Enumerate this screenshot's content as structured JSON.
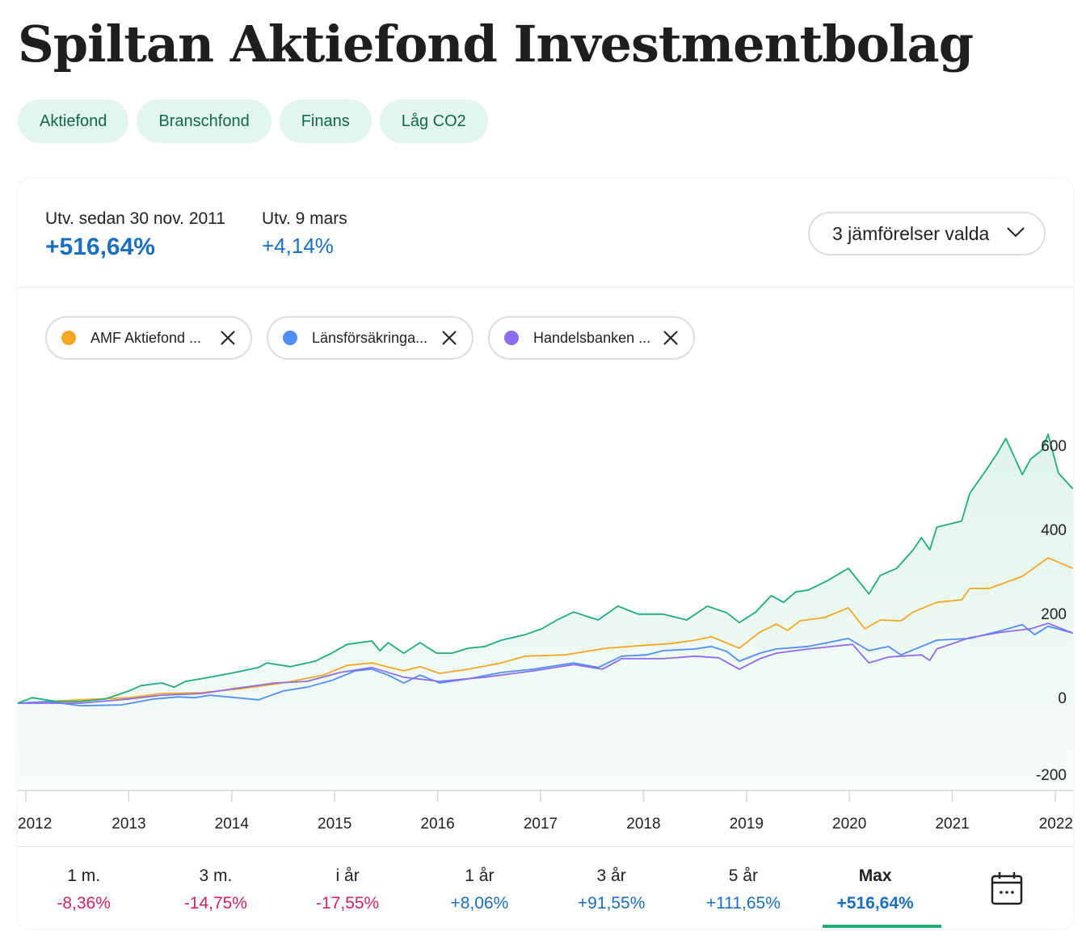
{
  "title": "Spiltan Aktiefond Investmentbolag",
  "tags": [
    "Aktiefond",
    "Branschfond",
    "Finans",
    "Låg CO2"
  ],
  "stats": {
    "since_label": "Utv. sedan 30 nov. 2011",
    "since_value": "+516,64%",
    "day_label": "Utv. 9 mars",
    "day_value": "+4,14%"
  },
  "compare_button": "3 jämförelser valda",
  "comparisons": [
    {
      "name": "AMF Aktiefond ...",
      "color": "#f5a623"
    },
    {
      "name": "Länsförsäkringa...",
      "color": "#4f8ff7"
    },
    {
      "name": "Handelsbanken ...",
      "color": "#8e6cf0"
    }
  ],
  "periods": [
    {
      "label": "1 m.",
      "value": "-8,36%",
      "tone": "neg"
    },
    {
      "label": "3 m.",
      "value": "-14,75%",
      "tone": "neg"
    },
    {
      "label": "i år",
      "value": "-17,55%",
      "tone": "neg"
    },
    {
      "label": "1 år",
      "value": "+8,06%",
      "tone": "pos"
    },
    {
      "label": "3 år",
      "value": "+91,55%",
      "tone": "pos"
    },
    {
      "label": "5 år",
      "value": "+111,65%",
      "tone": "pos"
    },
    {
      "label": "Max",
      "value": "+516,64%",
      "tone": "pos",
      "active": true
    }
  ],
  "colors": {
    "neg": "#d0245a",
    "pos": "#1a6fc0",
    "main": "#1fae78"
  },
  "chart_data": {
    "type": "line",
    "xlabel": "",
    "ylabel": "",
    "x_ticks": [
      "2012",
      "2013",
      "2014",
      "2015",
      "2016",
      "2017",
      "2018",
      "2019",
      "2020",
      "2021",
      "2022"
    ],
    "y_ticks": [
      "600",
      "400",
      "200",
      "0",
      "-200"
    ],
    "xlim": [
      2011.92,
      2022.17
    ],
    "ylim": [
      -205,
      640
    ],
    "grid": false,
    "series": [
      {
        "name": "Spiltan Aktiefond Investmentbolag",
        "color": "#1fae78",
        "fill": true,
        "points": [
          [
            2011.92,
            0
          ],
          [
            2012.06,
            13
          ],
          [
            2012.3,
            4
          ],
          [
            2012.53,
            4
          ],
          [
            2012.77,
            10
          ],
          [
            2013.0,
            29
          ],
          [
            2013.12,
            42
          ],
          [
            2013.32,
            48
          ],
          [
            2013.44,
            38
          ],
          [
            2013.55,
            52
          ],
          [
            2013.79,
            62
          ],
          [
            2014.03,
            73
          ],
          [
            2014.26,
            85
          ],
          [
            2014.34,
            96
          ],
          [
            2014.57,
            87
          ],
          [
            2014.81,
            100
          ],
          [
            2014.97,
            119
          ],
          [
            2015.12,
            140
          ],
          [
            2015.36,
            148
          ],
          [
            2015.44,
            125
          ],
          [
            2015.52,
            144
          ],
          [
            2015.67,
            119
          ],
          [
            2015.83,
            144
          ],
          [
            2015.99,
            119
          ],
          [
            2016.14,
            119
          ],
          [
            2016.3,
            131
          ],
          [
            2016.46,
            135
          ],
          [
            2016.62,
            150
          ],
          [
            2016.85,
            163
          ],
          [
            2017.01,
            177
          ],
          [
            2017.16,
            198
          ],
          [
            2017.32,
            217
          ],
          [
            2017.56,
            198
          ],
          [
            2017.75,
            231
          ],
          [
            2017.95,
            212
          ],
          [
            2018.19,
            212
          ],
          [
            2018.42,
            198
          ],
          [
            2018.62,
            231
          ],
          [
            2018.81,
            215
          ],
          [
            2018.93,
            192
          ],
          [
            2019.09,
            217
          ],
          [
            2019.24,
            256
          ],
          [
            2019.36,
            240
          ],
          [
            2019.48,
            265
          ],
          [
            2019.6,
            269
          ],
          [
            2019.79,
            292
          ],
          [
            2019.99,
            321
          ],
          [
            2020.19,
            260
          ],
          [
            2020.3,
            304
          ],
          [
            2020.46,
            321
          ],
          [
            2020.62,
            365
          ],
          [
            2020.7,
            394
          ],
          [
            2020.78,
            365
          ],
          [
            2020.85,
            419
          ],
          [
            2021.09,
            433
          ],
          [
            2021.17,
            500
          ],
          [
            2021.32,
            552
          ],
          [
            2021.44,
            596
          ],
          [
            2021.52,
            630
          ],
          [
            2021.68,
            544
          ],
          [
            2021.76,
            581
          ],
          [
            2021.87,
            602
          ],
          [
            2021.93,
            640
          ],
          [
            2022.03,
            548
          ],
          [
            2022.17,
            510
          ]
        ]
      },
      {
        "name": "AMF Aktiefond",
        "color": "#f5a623",
        "points": [
          [
            2011.92,
            0
          ],
          [
            2012.53,
            8
          ],
          [
            2013.0,
            13
          ],
          [
            2013.32,
            23
          ],
          [
            2013.71,
            25
          ],
          [
            2014.1,
            35
          ],
          [
            2014.5,
            48
          ],
          [
            2014.89,
            67
          ],
          [
            2015.12,
            90
          ],
          [
            2015.36,
            96
          ],
          [
            2015.67,
            77
          ],
          [
            2015.83,
            87
          ],
          [
            2016.02,
            71
          ],
          [
            2016.3,
            81
          ],
          [
            2016.62,
            96
          ],
          [
            2016.85,
            112
          ],
          [
            2017.24,
            115
          ],
          [
            2017.64,
            131
          ],
          [
            2018.03,
            138
          ],
          [
            2018.27,
            142
          ],
          [
            2018.5,
            150
          ],
          [
            2018.66,
            158
          ],
          [
            2018.93,
            131
          ],
          [
            2019.13,
            169
          ],
          [
            2019.29,
            188
          ],
          [
            2019.4,
            173
          ],
          [
            2019.52,
            196
          ],
          [
            2019.76,
            204
          ],
          [
            2019.99,
            227
          ],
          [
            2020.15,
            177
          ],
          [
            2020.3,
            198
          ],
          [
            2020.5,
            196
          ],
          [
            2020.62,
            217
          ],
          [
            2020.85,
            240
          ],
          [
            2021.09,
            246
          ],
          [
            2021.17,
            273
          ],
          [
            2021.36,
            273
          ],
          [
            2021.68,
            302
          ],
          [
            2021.93,
            346
          ],
          [
            2022.17,
            321
          ]
        ]
      },
      {
        "name": "Länsförsäkringar",
        "color": "#4f8ff7",
        "points": [
          [
            2011.92,
            0
          ],
          [
            2012.22,
            4
          ],
          [
            2012.53,
            -6
          ],
          [
            2012.93,
            -4
          ],
          [
            2013.24,
            10
          ],
          [
            2013.48,
            15
          ],
          [
            2013.64,
            13
          ],
          [
            2013.79,
            19
          ],
          [
            2014.26,
            8
          ],
          [
            2014.5,
            29
          ],
          [
            2014.73,
            38
          ],
          [
            2014.97,
            54
          ],
          [
            2015.2,
            77
          ],
          [
            2015.36,
            81
          ],
          [
            2015.52,
            67
          ],
          [
            2015.67,
            48
          ],
          [
            2015.83,
            67
          ],
          [
            2016.02,
            48
          ],
          [
            2016.3,
            58
          ],
          [
            2016.62,
            73
          ],
          [
            2016.93,
            81
          ],
          [
            2017.32,
            96
          ],
          [
            2017.56,
            85
          ],
          [
            2017.79,
            112
          ],
          [
            2018.03,
            115
          ],
          [
            2018.19,
            125
          ],
          [
            2018.5,
            129
          ],
          [
            2018.66,
            135
          ],
          [
            2018.81,
            123
          ],
          [
            2018.93,
            100
          ],
          [
            2019.13,
            119
          ],
          [
            2019.29,
            129
          ],
          [
            2019.6,
            135
          ],
          [
            2019.99,
            154
          ],
          [
            2020.19,
            125
          ],
          [
            2020.38,
            135
          ],
          [
            2020.5,
            115
          ],
          [
            2020.7,
            135
          ],
          [
            2020.85,
            150
          ],
          [
            2021.17,
            154
          ],
          [
            2021.48,
            173
          ],
          [
            2021.68,
            187
          ],
          [
            2021.8,
            163
          ],
          [
            2021.93,
            183
          ],
          [
            2022.17,
            167
          ]
        ]
      },
      {
        "name": "Handelsbanken",
        "color": "#8e6cf0",
        "points": [
          [
            2011.92,
            0
          ],
          [
            2012.53,
            0
          ],
          [
            2013.0,
            10
          ],
          [
            2013.32,
            19
          ],
          [
            2013.71,
            23
          ],
          [
            2014.03,
            35
          ],
          [
            2014.42,
            48
          ],
          [
            2014.73,
            52
          ],
          [
            2015.05,
            73
          ],
          [
            2015.36,
            85
          ],
          [
            2015.67,
            62
          ],
          [
            2016.02,
            52
          ],
          [
            2016.46,
            62
          ],
          [
            2016.93,
            77
          ],
          [
            2017.32,
            92
          ],
          [
            2017.6,
            81
          ],
          [
            2017.79,
            106
          ],
          [
            2018.19,
            106
          ],
          [
            2018.5,
            112
          ],
          [
            2018.73,
            108
          ],
          [
            2018.93,
            81
          ],
          [
            2019.13,
            106
          ],
          [
            2019.29,
            119
          ],
          [
            2019.6,
            129
          ],
          [
            2020.03,
            140
          ],
          [
            2020.19,
            96
          ],
          [
            2020.38,
            110
          ],
          [
            2020.7,
            115
          ],
          [
            2020.78,
            102
          ],
          [
            2020.85,
            129
          ],
          [
            2021.17,
            156
          ],
          [
            2021.48,
            169
          ],
          [
            2021.76,
            177
          ],
          [
            2021.93,
            190
          ],
          [
            2022.17,
            167
          ]
        ]
      }
    ]
  }
}
